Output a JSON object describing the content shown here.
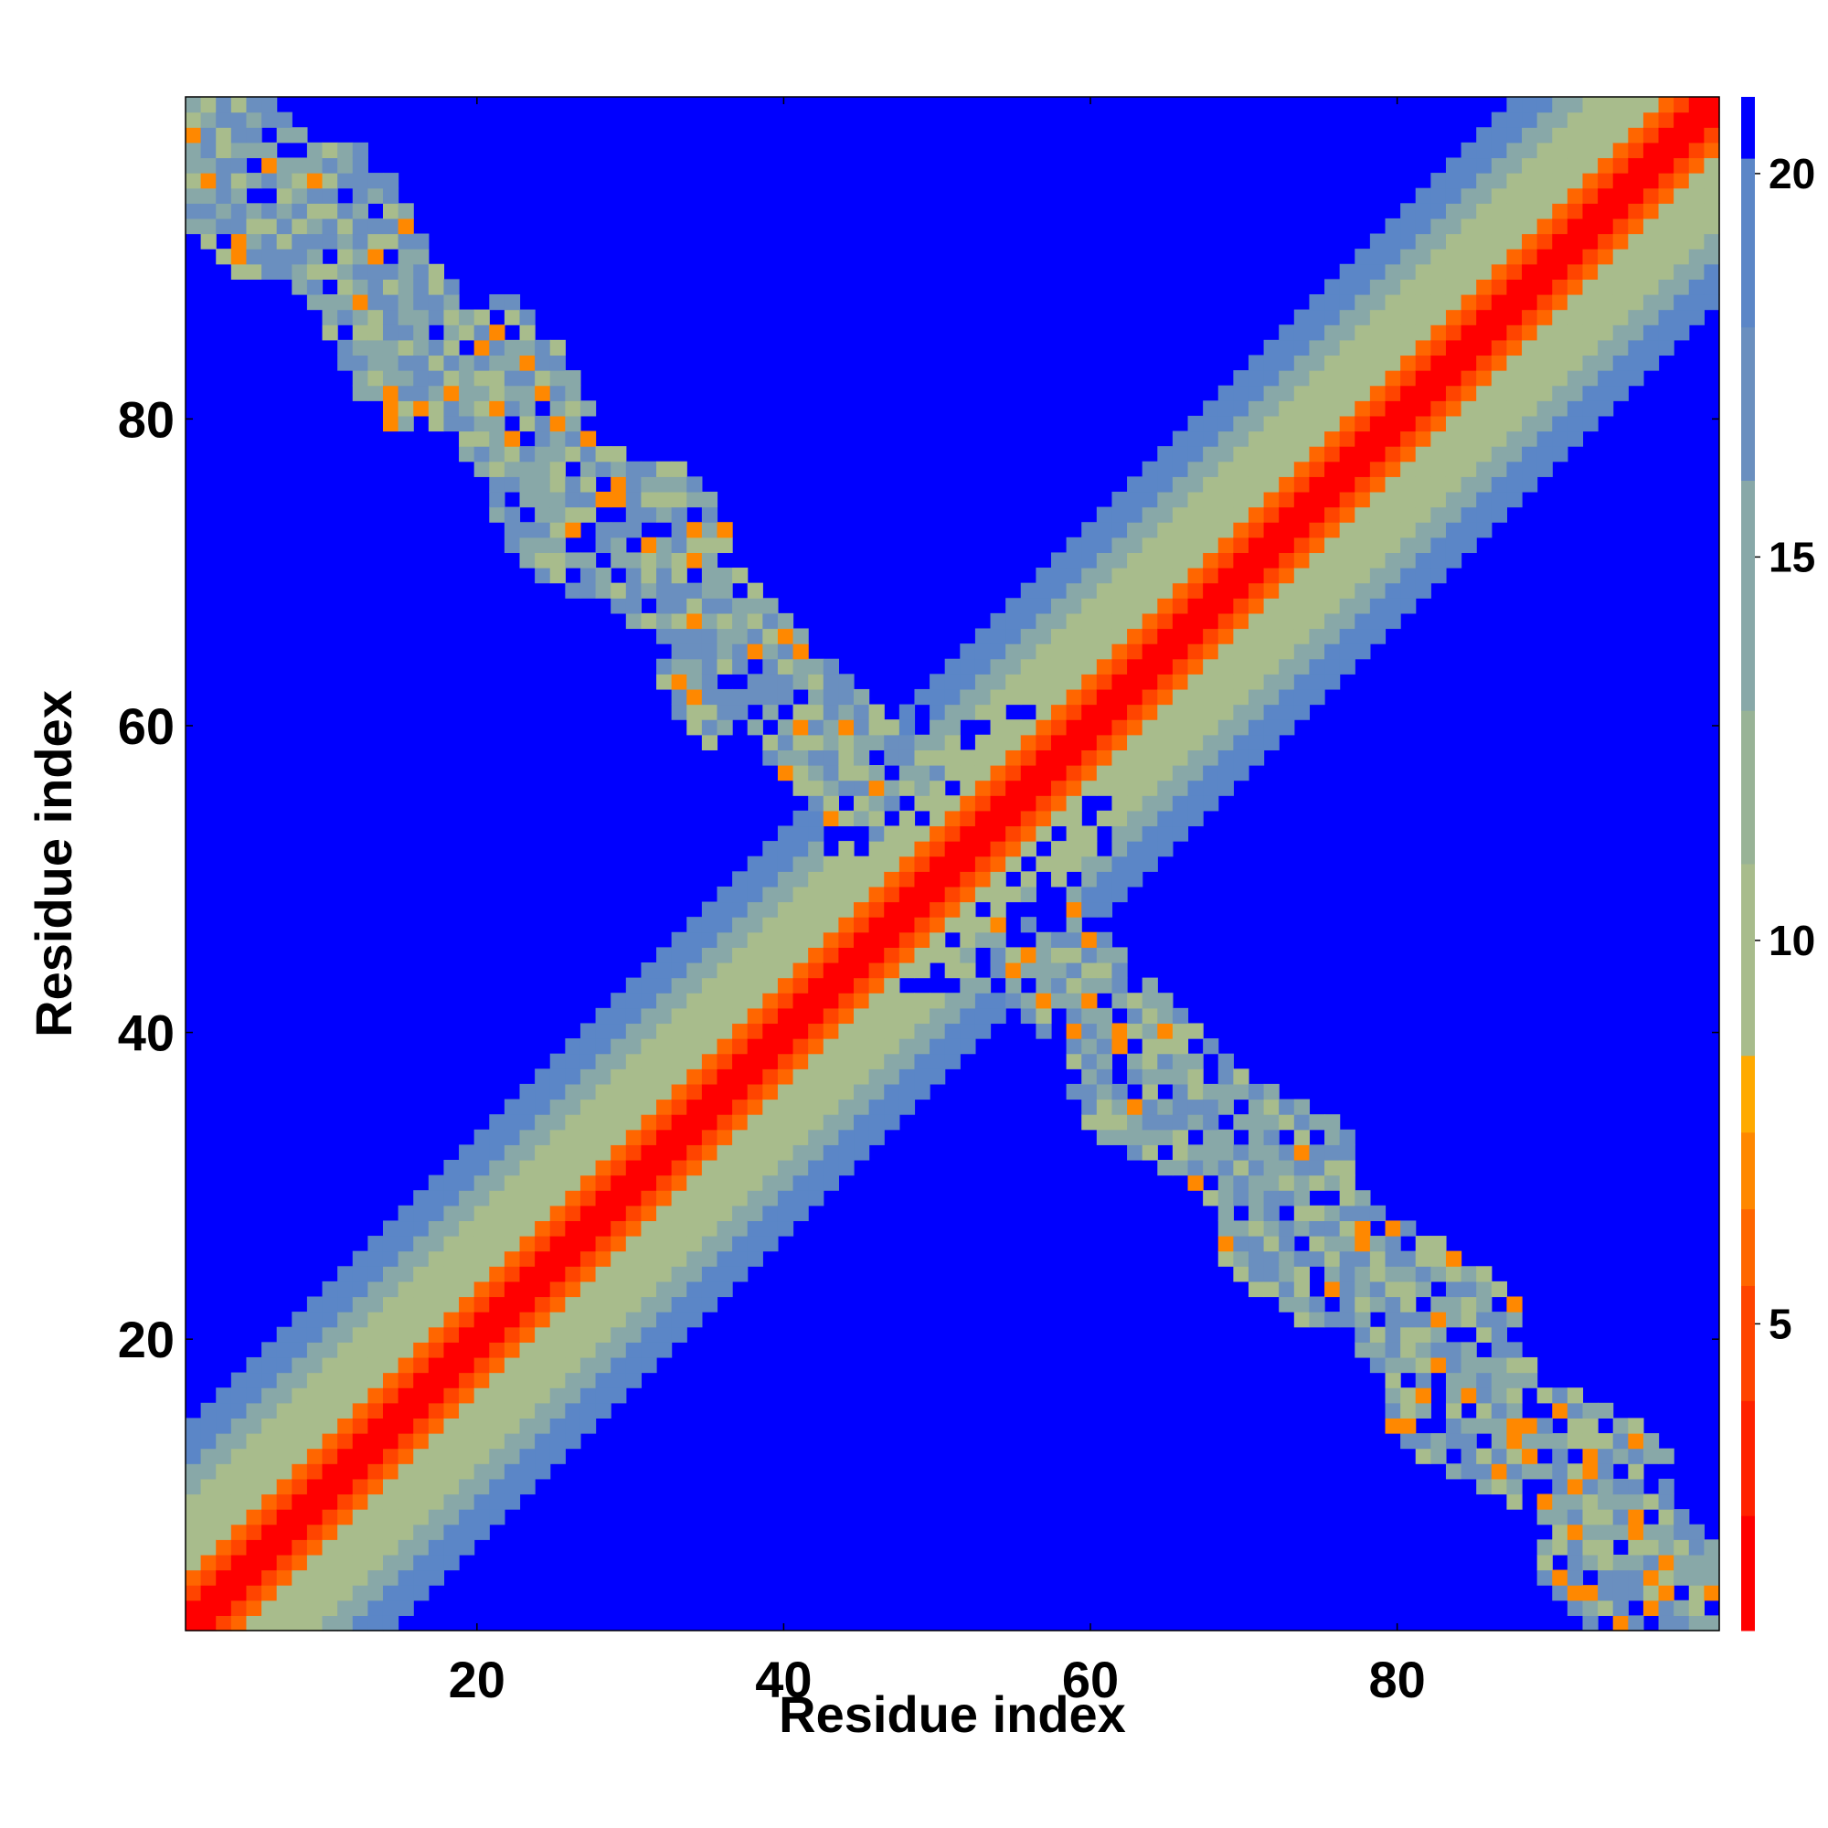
{
  "chart_data": {
    "type": "heatmap",
    "title": "",
    "xlabel": "Residue index",
    "ylabel": "Residue index",
    "n_residues": 101,
    "xlim": [
      1,
      101
    ],
    "ylim": [
      1,
      101
    ],
    "x_ticks": [
      20,
      40,
      60,
      80
    ],
    "y_ticks": [
      20,
      40,
      60,
      80
    ],
    "colorbar": {
      "range": [
        1,
        21
      ],
      "ticks": [
        5,
        10,
        15,
        20
      ],
      "colors": [
        "#ff0000",
        "#ff2200",
        "#ff4400",
        "#ff6600",
        "#ff8800",
        "#ffaa00",
        "#a8bc8c",
        "#98b396",
        "#88a8a8",
        "#6a8fbf",
        "#5b86c7",
        "#0000ff"
      ],
      "bounds": [
        1,
        2.5,
        4,
        5.5,
        6.5,
        7.5,
        8.5,
        11,
        13,
        16,
        18,
        20.2,
        21
      ]
    },
    "contact_map": {
      "description_units": "pairwise residue distance",
      "diagonal_profile": [
        {
          "offset_max": 1,
          "value": 1
        },
        {
          "offset_max": 2,
          "value": 4.5
        },
        {
          "offset_max": 3,
          "value": 6.5
        },
        {
          "offset_max": 5,
          "value": 9
        },
        {
          "offset_max": 8,
          "value": 11
        },
        {
          "offset_max": 10,
          "value": 16
        },
        {
          "offset_max": 13,
          "value": 18.5
        }
      ],
      "far_value": 21,
      "anti_diagonal_contacts": [
        {
          "i_range": [
            2,
            38
          ],
          "j_range": [
            66,
            100
          ],
          "typical_value": 15
        },
        {
          "i_range": [
            66,
            100
          ],
          "j_range": [
            2,
            38
          ],
          "typical_value": 15
        },
        {
          "i_range": [
            34,
            66
          ],
          "j_range": [
            34,
            66
          ],
          "typical_value": 14
        }
      ]
    }
  }
}
